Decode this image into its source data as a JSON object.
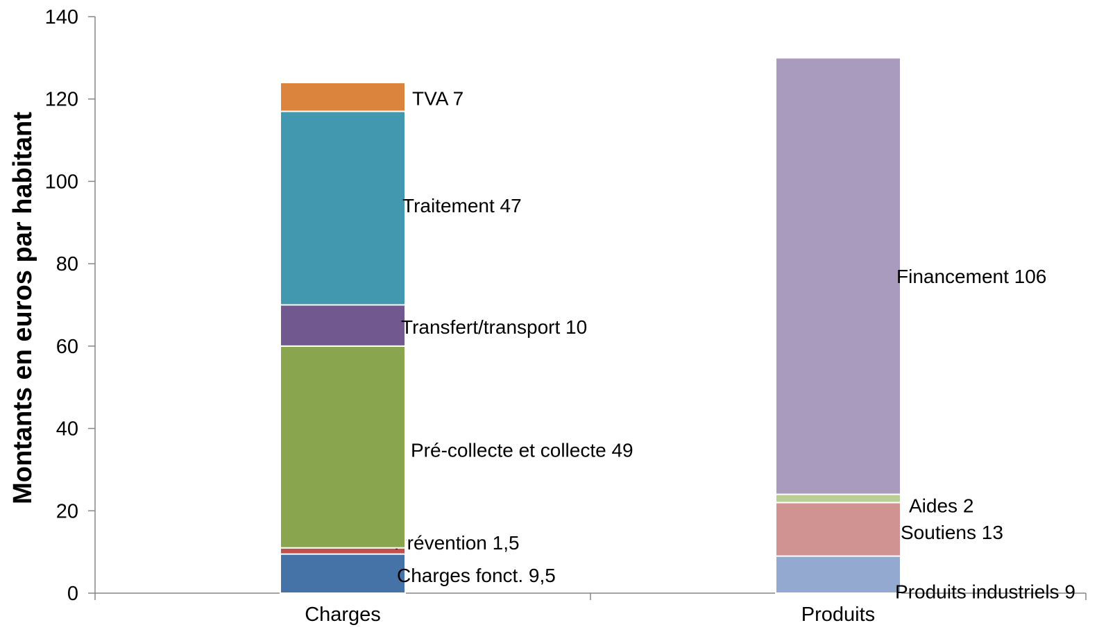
{
  "chart_data": {
    "type": "bar",
    "stacked": true,
    "ylabel": "Montants en euros par habitant",
    "ylim": [
      0,
      140
    ],
    "yticks": [
      0,
      20,
      40,
      60,
      80,
      100,
      120,
      140
    ],
    "grid": false,
    "legend": "none",
    "categories": [
      "Charges",
      "Produits"
    ],
    "bars": [
      {
        "category": "Charges",
        "segments": [
          {
            "name": "Charges fonct.",
            "value": 9.5,
            "label": "Charges fonct. 9,5",
            "color": "#4572a7"
          },
          {
            "name": "Prévention",
            "value": 1.5,
            "label": "Prévention 1,5",
            "color": "#c0504d"
          },
          {
            "name": "Pré-collecte et collecte",
            "value": 49,
            "label": "Pré-collecte et collecte 49",
            "color": "#89a54e"
          },
          {
            "name": "Transfert/transport",
            "value": 10,
            "label": "Transfert/transport 10",
            "color": "#71588f"
          },
          {
            "name": "Traitement",
            "value": 47,
            "label": "Traitement 47",
            "color": "#4198af"
          },
          {
            "name": "TVA",
            "value": 7,
            "label": "TVA 7",
            "color": "#db843d"
          }
        ]
      },
      {
        "category": "Produits",
        "segments": [
          {
            "name": "Produits industriels",
            "value": 9,
            "label": "Produits industriels 9",
            "color": "#93a9cf"
          },
          {
            "name": "Soutiens",
            "value": 13,
            "label": "Soutiens 13",
            "color": "#d19392"
          },
          {
            "name": "Aides",
            "value": 2,
            "label": "Aides 2",
            "color": "#b9cd96"
          },
          {
            "name": "Financement",
            "value": 106,
            "label": "Financement 106",
            "color": "#a99bbd"
          }
        ]
      }
    ]
  }
}
